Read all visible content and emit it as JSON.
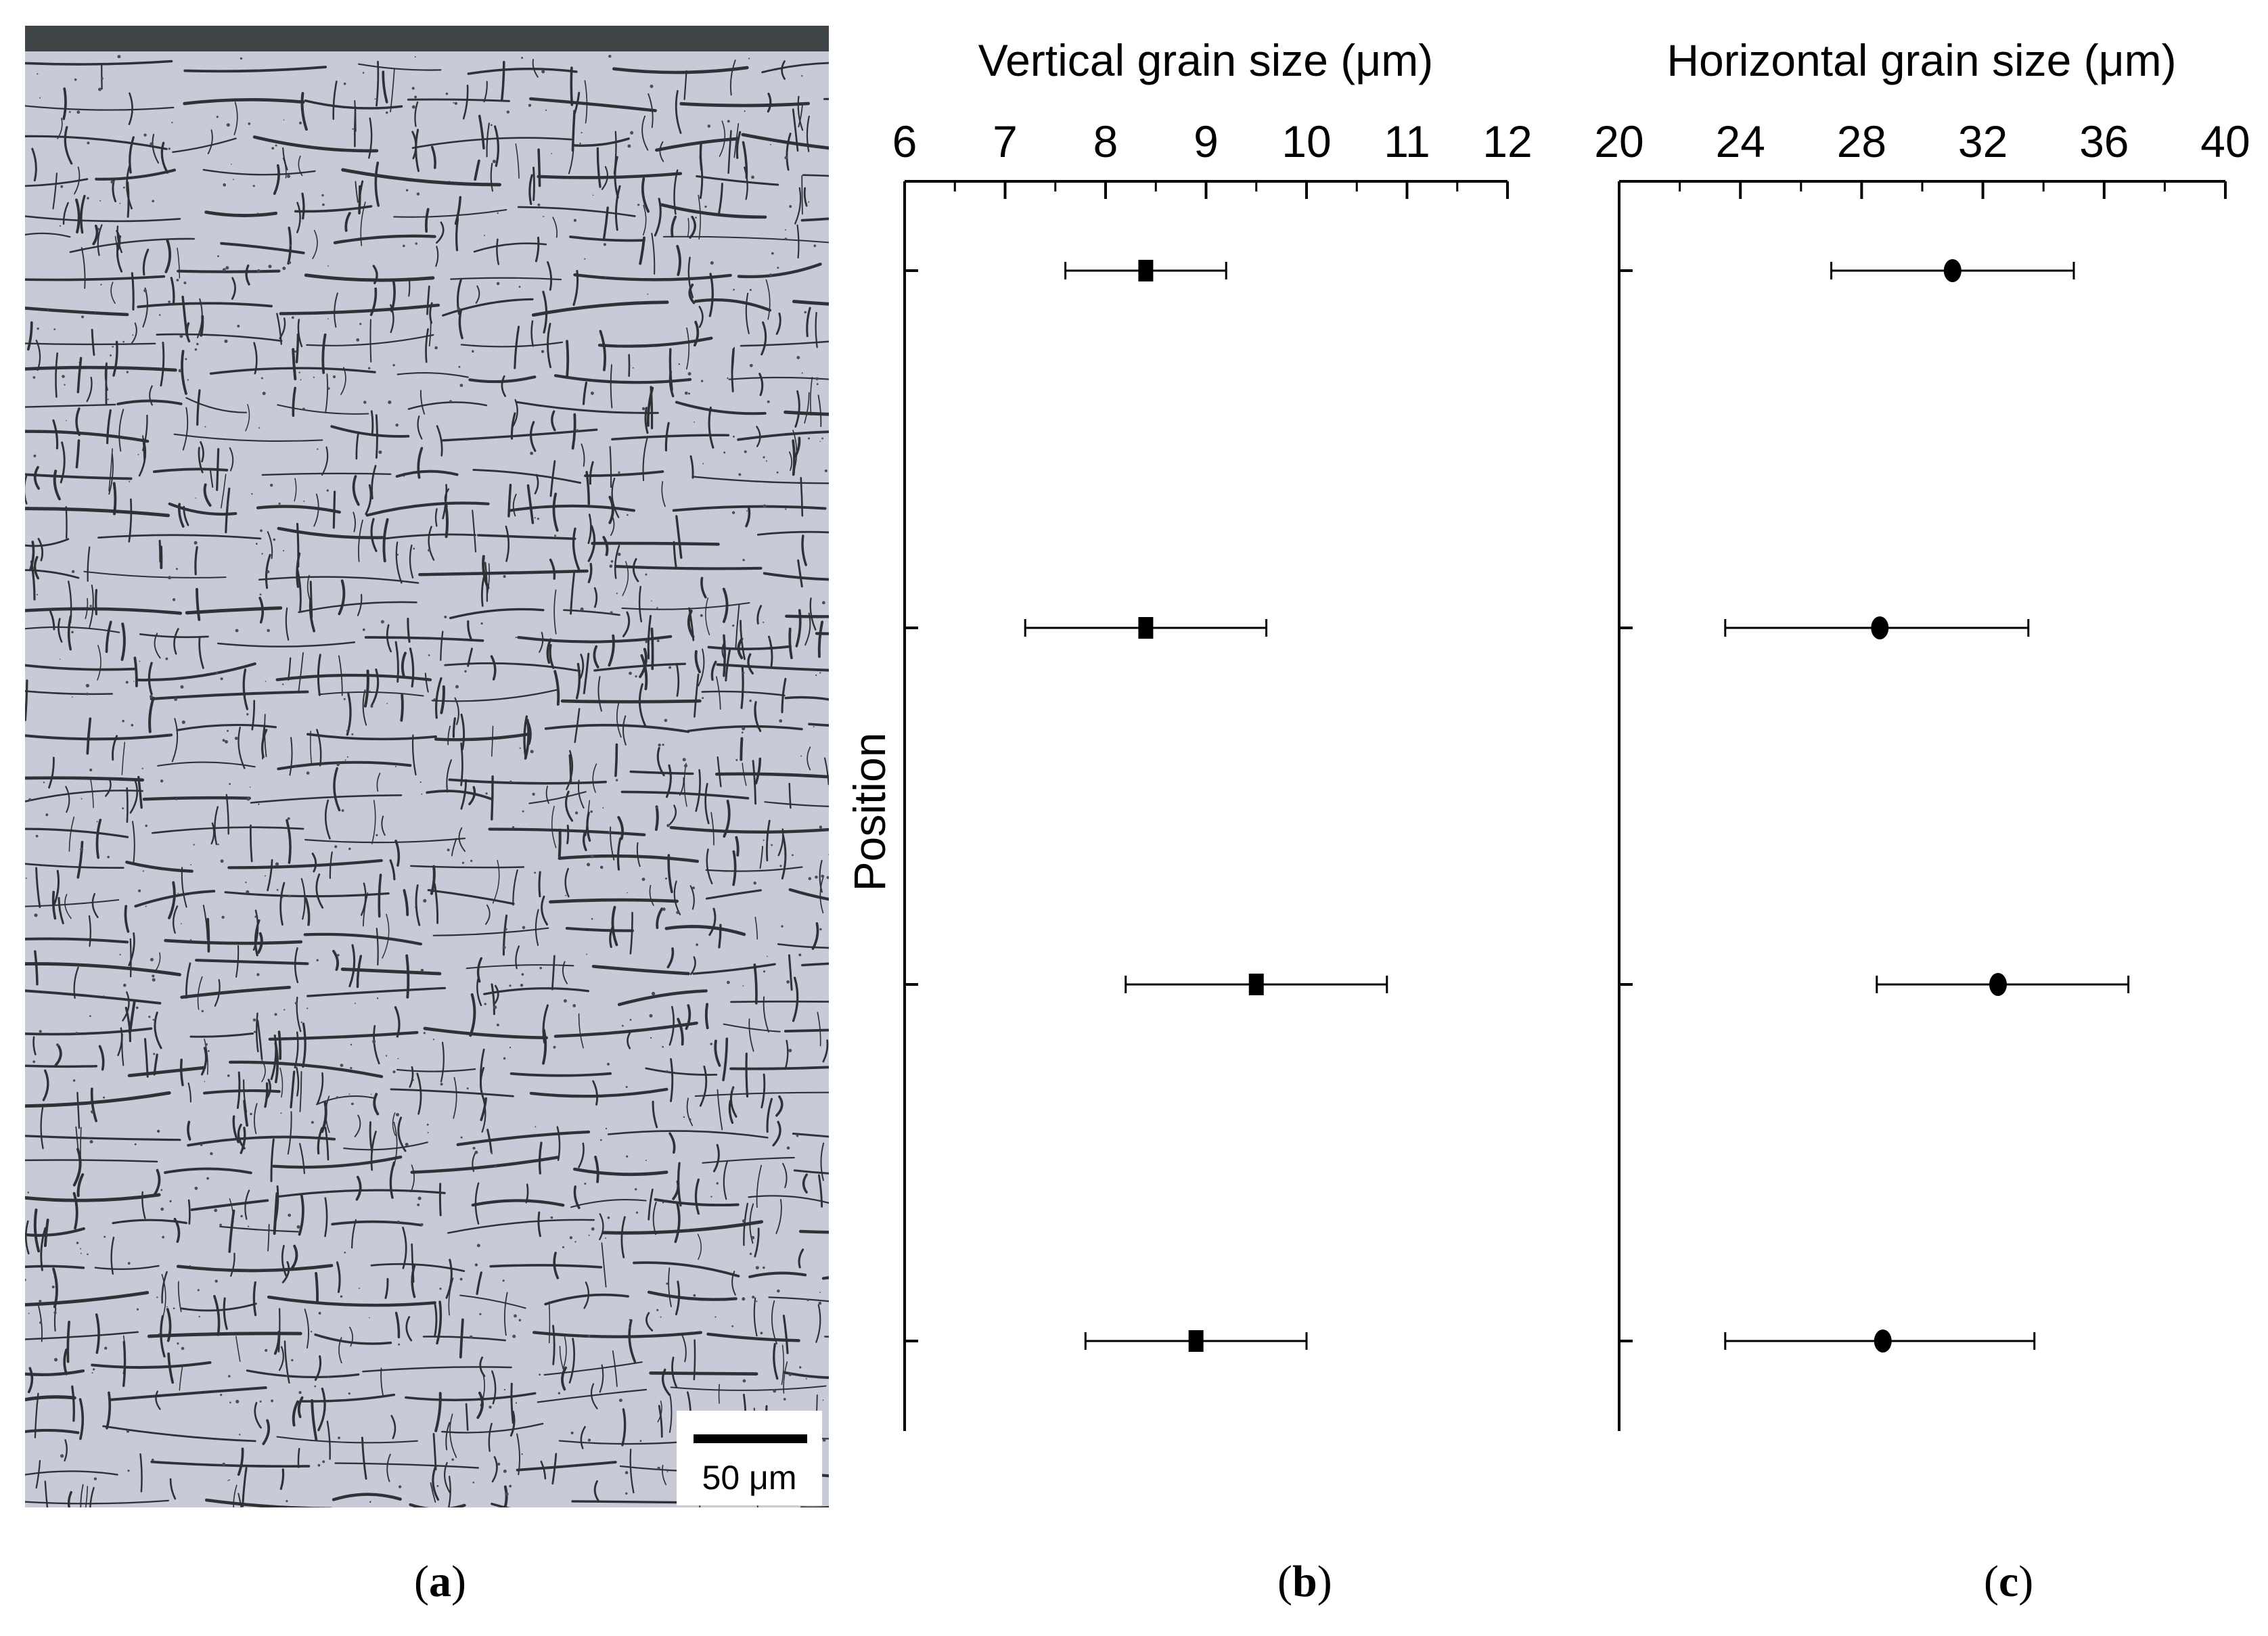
{
  "panels": {
    "a": "a",
    "b": "b",
    "c": "c"
  },
  "micrograph": {
    "scale_label": "50 μm",
    "colors": {
      "background": "#c9cad8",
      "grain_boundary": "#2e3237",
      "top_edge": "#3f4446"
    }
  },
  "chart_data": [
    {
      "type": "scatter",
      "title": "Vertical grain size (μm)",
      "xlabel": "Vertical grain size (μm)",
      "ylabel": "Position",
      "xlim": [
        6,
        12
      ],
      "xticks": [
        6,
        7,
        8,
        9,
        10,
        11,
        12
      ],
      "marker": "square",
      "points": [
        {
          "value": 8.4,
          "err_low": 7.6,
          "err_high": 9.2
        },
        {
          "value": 8.4,
          "err_low": 7.2,
          "err_high": 9.6
        },
        {
          "value": 9.5,
          "err_low": 8.2,
          "err_high": 10.8
        },
        {
          "value": 8.9,
          "err_low": 7.8,
          "err_high": 10.0
        }
      ]
    },
    {
      "type": "scatter",
      "title": "Horizontal grain size (μm)",
      "xlabel": "Horizontal grain size (μm)",
      "ylabel": "",
      "xlim": [
        20,
        40
      ],
      "xticks": [
        20,
        24,
        28,
        32,
        36,
        40
      ],
      "marker": "circle",
      "points": [
        {
          "value": 31.0,
          "err_low": 27.0,
          "err_high": 35.0
        },
        {
          "value": 28.6,
          "err_low": 23.5,
          "err_high": 33.5
        },
        {
          "value": 32.5,
          "err_low": 28.5,
          "err_high": 36.8
        },
        {
          "value": 28.7,
          "err_low": 23.5,
          "err_high": 33.7
        }
      ]
    }
  ]
}
